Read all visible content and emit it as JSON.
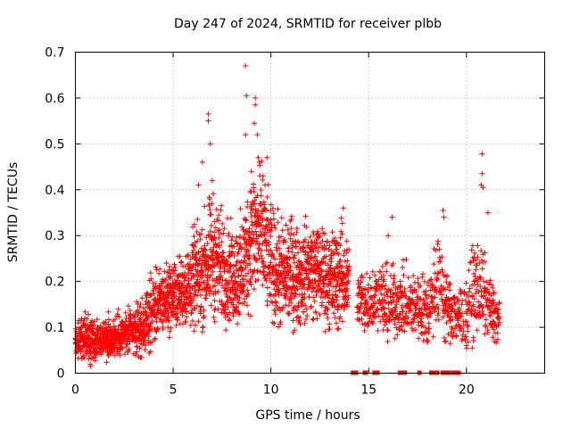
{
  "chart_data": {
    "type": "scatter",
    "title": "Day 247 of 2024, SRMTID for receiver plbb",
    "xlabel": "GPS time / hours",
    "ylabel": "SRMTID / TECUs",
    "xlim": [
      0,
      24
    ],
    "ylim": [
      0,
      0.7
    ],
    "xticks": [
      "0",
      "5",
      "10",
      "15",
      "20"
    ],
    "yticks": [
      "0",
      "0.1",
      "0.2",
      "0.3",
      "0.4",
      "0.5",
      "0.6",
      "0.7"
    ],
    "grid": true,
    "legend": "none",
    "marker": "+",
    "color": "#ff0000",
    "envelope": [
      [
        0.0,
        0.07,
        0.03
      ],
      [
        0.5,
        0.075,
        0.035
      ],
      [
        1.0,
        0.07,
        0.03
      ],
      [
        1.5,
        0.075,
        0.03
      ],
      [
        2.0,
        0.08,
        0.03
      ],
      [
        2.5,
        0.085,
        0.03
      ],
      [
        3.0,
        0.09,
        0.035
      ],
      [
        3.5,
        0.1,
        0.04
      ],
      [
        4.0,
        0.14,
        0.05
      ],
      [
        4.5,
        0.16,
        0.05
      ],
      [
        5.0,
        0.17,
        0.05
      ],
      [
        5.5,
        0.18,
        0.05
      ],
      [
        6.0,
        0.2,
        0.07
      ],
      [
        6.5,
        0.22,
        0.08
      ],
      [
        7.0,
        0.26,
        0.09
      ],
      [
        7.5,
        0.23,
        0.08
      ],
      [
        8.0,
        0.21,
        0.07
      ],
      [
        8.5,
        0.22,
        0.08
      ],
      [
        9.0,
        0.3,
        0.1
      ],
      [
        9.5,
        0.3,
        0.1
      ],
      [
        10.0,
        0.24,
        0.08
      ],
      [
        10.5,
        0.21,
        0.08
      ],
      [
        11.0,
        0.22,
        0.08
      ],
      [
        11.5,
        0.21,
        0.07
      ],
      [
        12.0,
        0.23,
        0.07
      ],
      [
        12.5,
        0.22,
        0.07
      ],
      [
        13.0,
        0.2,
        0.07
      ],
      [
        13.5,
        0.21,
        0.08
      ],
      [
        14.0,
        0.2,
        0.06
      ]
    ],
    "gap_hours": [
      14.2,
      14.4
    ],
    "second_segment": {
      "start": 14.4,
      "end": 21.7,
      "envelope": [
        [
          14.5,
          0.16,
          0.05
        ],
        [
          15.0,
          0.15,
          0.05
        ],
        [
          15.5,
          0.17,
          0.06
        ],
        [
          16.0,
          0.15,
          0.05
        ],
        [
          16.5,
          0.16,
          0.05
        ],
        [
          17.0,
          0.15,
          0.05
        ],
        [
          17.5,
          0.15,
          0.05
        ],
        [
          18.0,
          0.14,
          0.05
        ],
        [
          18.5,
          0.2,
          0.07
        ],
        [
          19.0,
          0.15,
          0.05
        ],
        [
          19.5,
          0.12,
          0.04
        ],
        [
          20.0,
          0.13,
          0.05
        ],
        [
          20.5,
          0.2,
          0.08
        ],
        [
          21.0,
          0.16,
          0.06
        ],
        [
          21.5,
          0.12,
          0.04
        ]
      ]
    },
    "spikes": [
      {
        "x": 6.8,
        "y": 0.565
      },
      {
        "x": 6.8,
        "y": 0.55
      },
      {
        "x": 6.9,
        "y": 0.5
      },
      {
        "x": 6.5,
        "y": 0.46
      },
      {
        "x": 7.0,
        "y": 0.42
      },
      {
        "x": 6.3,
        "y": 0.41
      },
      {
        "x": 8.7,
        "y": 0.67
      },
      {
        "x": 8.75,
        "y": 0.605
      },
      {
        "x": 8.7,
        "y": 0.52
      },
      {
        "x": 9.2,
        "y": 0.6
      },
      {
        "x": 9.2,
        "y": 0.585
      },
      {
        "x": 9.15,
        "y": 0.545
      },
      {
        "x": 9.3,
        "y": 0.52
      },
      {
        "x": 9.35,
        "y": 0.47
      },
      {
        "x": 9.4,
        "y": 0.46
      },
      {
        "x": 9.0,
        "y": 0.44
      },
      {
        "x": 9.6,
        "y": 0.43
      },
      {
        "x": 9.8,
        "y": 0.47
      },
      {
        "x": 9.7,
        "y": 0.41
      },
      {
        "x": 13.7,
        "y": 0.36
      },
      {
        "x": 20.8,
        "y": 0.478
      },
      {
        "x": 20.8,
        "y": 0.435
      },
      {
        "x": 20.75,
        "y": 0.41
      },
      {
        "x": 20.85,
        "y": 0.405
      },
      {
        "x": 21.1,
        "y": 0.35
      },
      {
        "x": 18.8,
        "y": 0.355
      },
      {
        "x": 18.85,
        "y": 0.34
      },
      {
        "x": 16.2,
        "y": 0.34
      },
      {
        "x": 16.0,
        "y": 0.3
      }
    ],
    "zero_markers_hours": [
      14.2,
      14.35,
      14.8,
      14.85,
      15.3,
      15.35,
      15.45,
      16.6,
      16.65,
      16.7,
      16.75,
      16.85,
      17.6,
      18.2,
      18.3,
      18.35,
      18.45,
      18.5,
      18.8,
      19.0,
      19.1,
      19.35,
      19.55,
      19.6
    ]
  }
}
